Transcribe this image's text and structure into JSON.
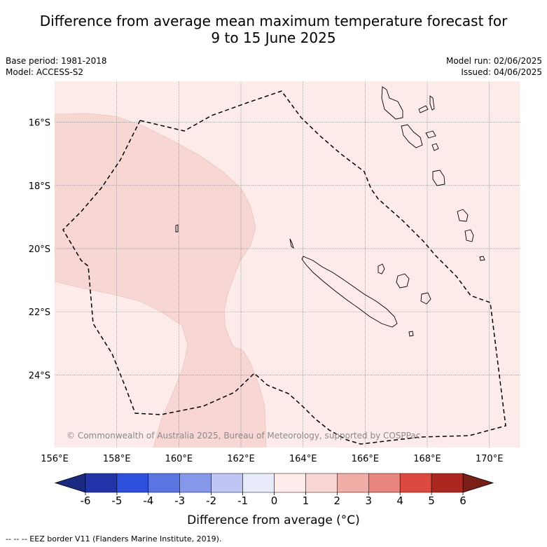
{
  "title_line1": "Difference from average mean maximum temperature forecast for",
  "title_line2": "9 to 15 June 2025",
  "meta": {
    "base_period": "Base period: 1981-2018",
    "model": "Model: ACCESS-S2",
    "model_run": "Model run: 02/06/2025",
    "issued": "Issued: 04/06/2025"
  },
  "map": {
    "lon_range": [
      156,
      171
    ],
    "lat_range": [
      -26.3,
      -14.7
    ],
    "lon_ticks": [
      156,
      158,
      160,
      162,
      164,
      166,
      168,
      170
    ],
    "lon_tick_labels": [
      "156°E",
      "158°E",
      "160°E",
      "162°E",
      "164°E",
      "166°E",
      "168°E",
      "170°E"
    ],
    "lat_ticks": [
      -16,
      -18,
      -20,
      -22,
      -24
    ],
    "lat_tick_labels": [
      "16°S",
      "18°S",
      "20°S",
      "22°S",
      "24°S"
    ],
    "background_class_color": "#fcebe9",
    "warm_region_color": "#f7d6d3",
    "copyright": "© Commonwealth of Australia 2025, Bureau of Meteorology, supported by COSPPac"
  },
  "colorbar": {
    "ticks": [
      "-6",
      "-5",
      "-4",
      "-3",
      "-2",
      "-1",
      "0",
      "1",
      "2",
      "3",
      "4",
      "5",
      "6"
    ],
    "colors": [
      "#2234a8",
      "#2e4fdc",
      "#5a74e2",
      "#8598e9",
      "#bfc6f3",
      "#e8ebfa",
      "#fdecea",
      "#f7d6d3",
      "#f0aca6",
      "#e8857c",
      "#dc4a3f",
      "#ad2721"
    ],
    "under_color": "#1a2a80",
    "over_color": "#7a1e18",
    "label": "Difference from average (°C)"
  },
  "legend_note": "--  --  -- EEZ border V11 (Flanders Marine Institute, 2019)."
}
